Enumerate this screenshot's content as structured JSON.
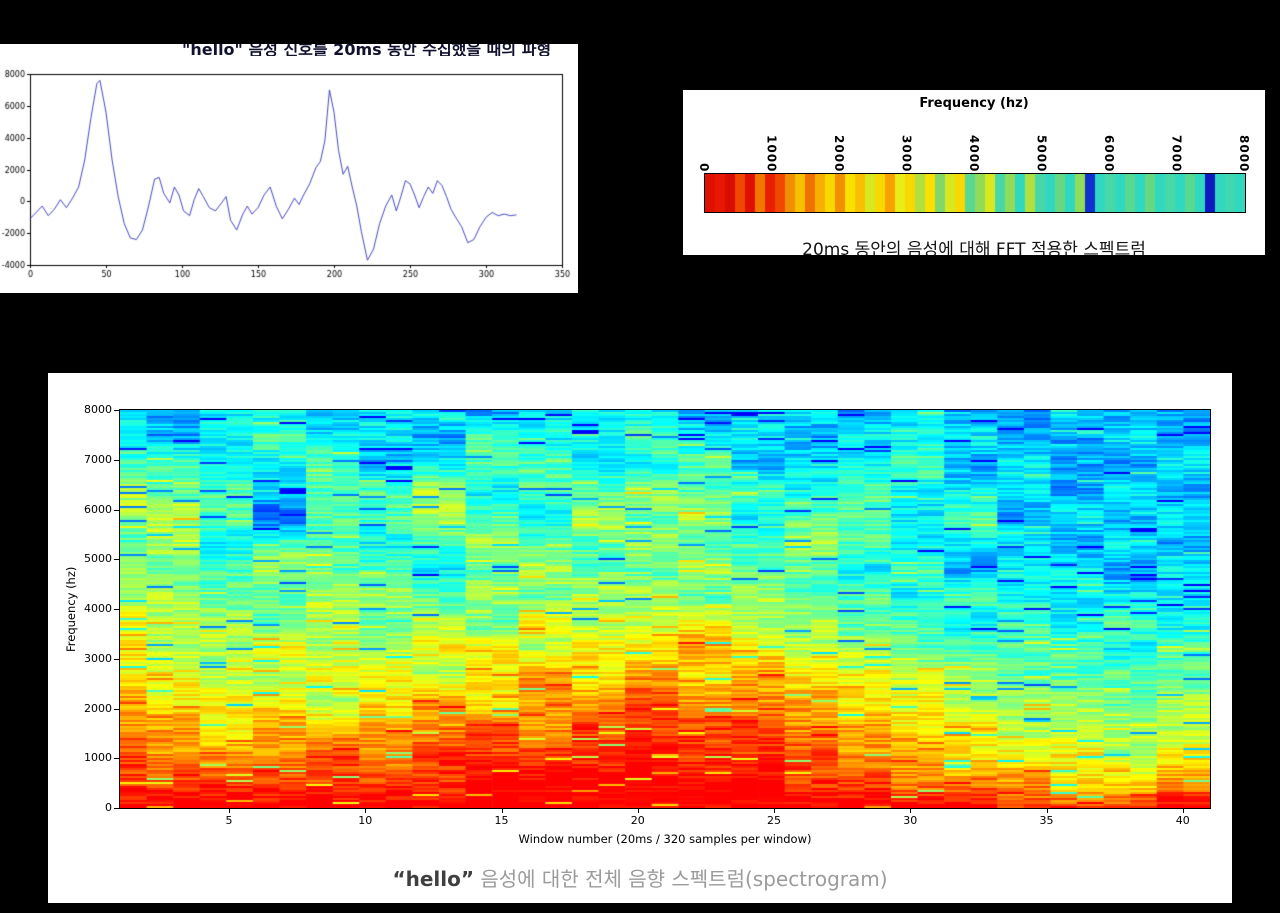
{
  "page": {
    "background": "#000000"
  },
  "chart_data": [
    {
      "type": "line",
      "clipped_title": "\"hello\" 음성 신호를 20ms 동안 수집했을 때의 파형",
      "xlabel": "",
      "ylabel": "",
      "xlim": [
        0,
        350
      ],
      "ylim": [
        -4000,
        8000
      ],
      "xticks": [
        0,
        50,
        100,
        150,
        200,
        250,
        300,
        350
      ],
      "yticks": [
        8000,
        6000,
        4000,
        2000,
        0,
        -2000,
        -4000
      ],
      "line_color": "#3434b8",
      "points": [
        [
          0,
          -1100
        ],
        [
          4,
          -700
        ],
        [
          8,
          -300
        ],
        [
          12,
          -900
        ],
        [
          16,
          -500
        ],
        [
          20,
          100
        ],
        [
          24,
          -400
        ],
        [
          28,
          200
        ],
        [
          32,
          900
        ],
        [
          36,
          2600
        ],
        [
          40,
          5200
        ],
        [
          44,
          7400
        ],
        [
          46,
          7600
        ],
        [
          50,
          5600
        ],
        [
          54,
          2600
        ],
        [
          58,
          300
        ],
        [
          62,
          -1400
        ],
        [
          66,
          -2300
        ],
        [
          70,
          -2400
        ],
        [
          74,
          -1800
        ],
        [
          78,
          -300
        ],
        [
          82,
          1400
        ],
        [
          85,
          1500
        ],
        [
          88,
          500
        ],
        [
          92,
          -100
        ],
        [
          95,
          900
        ],
        [
          98,
          400
        ],
        [
          101,
          -600
        ],
        [
          105,
          -900
        ],
        [
          108,
          100
        ],
        [
          111,
          800
        ],
        [
          114,
          300
        ],
        [
          118,
          -400
        ],
        [
          122,
          -600
        ],
        [
          126,
          -100
        ],
        [
          129,
          300
        ],
        [
          132,
          -1200
        ],
        [
          136,
          -1800
        ],
        [
          140,
          -800
        ],
        [
          143,
          -300
        ],
        [
          146,
          -800
        ],
        [
          150,
          -400
        ],
        [
          154,
          400
        ],
        [
          158,
          900
        ],
        [
          162,
          -300
        ],
        [
          166,
          -1100
        ],
        [
          170,
          -500
        ],
        [
          174,
          200
        ],
        [
          177,
          -200
        ],
        [
          180,
          400
        ],
        [
          184,
          1100
        ],
        [
          188,
          2100
        ],
        [
          191,
          2500
        ],
        [
          194,
          3800
        ],
        [
          197,
          7000
        ],
        [
          200,
          5600
        ],
        [
          203,
          3200
        ],
        [
          206,
          1700
        ],
        [
          209,
          2200
        ],
        [
          212,
          900
        ],
        [
          215,
          -300
        ],
        [
          218,
          -1900
        ],
        [
          222,
          -3700
        ],
        [
          226,
          -3000
        ],
        [
          230,
          -1400
        ],
        [
          234,
          -300
        ],
        [
          238,
          400
        ],
        [
          241,
          -600
        ],
        [
          244,
          300
        ],
        [
          247,
          1300
        ],
        [
          250,
          1100
        ],
        [
          253,
          400
        ],
        [
          256,
          -400
        ],
        [
          259,
          300
        ],
        [
          262,
          900
        ],
        [
          265,
          500
        ],
        [
          268,
          1300
        ],
        [
          271,
          1000
        ],
        [
          274,
          300
        ],
        [
          277,
          -500
        ],
        [
          280,
          -1000
        ],
        [
          284,
          -1600
        ],
        [
          288,
          -2600
        ],
        [
          292,
          -2400
        ],
        [
          296,
          -1600
        ],
        [
          300,
          -1000
        ],
        [
          304,
          -700
        ],
        [
          308,
          -900
        ],
        [
          312,
          -800
        ],
        [
          316,
          -900
        ],
        [
          320,
          -850
        ]
      ]
    },
    {
      "type": "heatmap",
      "title": "Frequency (hz)",
      "caption": "20ms 동안의 음성에 대해 FFT 적용한 스펙트럼",
      "xticks": [
        0,
        1000,
        2000,
        3000,
        4000,
        5000,
        6000,
        7000,
        8000
      ],
      "xlim": [
        0,
        8000
      ],
      "orientation": "horizontal-strip",
      "colors": [
        "#e01000",
        "#e81800",
        "#d80d00",
        "#f04800",
        "#e01000",
        "#f07800",
        "#e82000",
        "#f04800",
        "#f09000",
        "#f8c000",
        "#f07000",
        "#f8b000",
        "#f8d800",
        "#f09000",
        "#f8e000",
        "#f8c000",
        "#d8e820",
        "#f8d800",
        "#f8a000",
        "#e8ec18",
        "#f8d800",
        "#b0e040",
        "#f8e000",
        "#80d868",
        "#d8e820",
        "#f8d800",
        "#58d890",
        "#90dc58",
        "#d8e820",
        "#48d8a8",
        "#90dc58",
        "#30d8c0",
        "#b0e040",
        "#48d8a8",
        "#30d8c0",
        "#68d880",
        "#30d8c0",
        "#90dc58",
        "#1030d0",
        "#30d8c0",
        "#48d8a8",
        "#30d8c0",
        "#58d890",
        "#30d8c0",
        "#68d880",
        "#30d8c0",
        "#48d8a8",
        "#30d8c0",
        "#58d890",
        "#30d8c0",
        "#1018c0",
        "#30d8c0",
        "#40d8b0",
        "#30d8c0"
      ]
    },
    {
      "type": "heatmap",
      "colormap": "jet",
      "xlabel": "Window number (20ms / 320 samples per window)",
      "ylabel": "Frequency (hz)",
      "xlim": [
        1,
        41
      ],
      "ylim": [
        0,
        8000
      ],
      "n_windows": 41,
      "xticks": [
        5,
        10,
        15,
        20,
        25,
        30,
        35,
        40
      ],
      "yticks": [
        0,
        1000,
        2000,
        3000,
        4000,
        5000,
        6000,
        7000,
        8000
      ],
      "caption_quoted": "“hello”",
      "caption_rest": " 음성에 대한 전체 음향 스펙트럼(spectrogram)",
      "values_note": "rows top(8000hz) to bottom(0hz), 500hz bands; cols = windows 1..41 grouped in pairs; 0=low energy(blue) 9=high(red)",
      "values": [
        [
          3,
          2,
          3,
          3,
          2,
          3,
          3,
          2,
          3,
          3,
          3,
          2,
          3,
          3,
          2,
          3,
          2,
          2,
          3,
          2,
          2
        ],
        [
          3,
          2,
          3,
          4,
          3,
          3,
          2,
          4,
          3,
          3,
          4,
          3,
          3,
          2,
          3,
          3,
          3,
          2,
          2,
          3,
          2
        ],
        [
          4,
          4,
          3,
          3,
          4,
          2,
          3,
          4,
          4,
          3,
          3,
          4,
          2,
          3,
          3,
          4,
          2,
          3,
          2,
          2,
          3
        ],
        [
          5,
          4,
          4,
          3,
          4,
          4,
          5,
          3,
          4,
          4,
          5,
          4,
          4,
          3,
          4,
          3,
          3,
          3,
          2,
          3,
          2
        ],
        [
          5,
          5,
          4,
          1,
          4,
          4,
          5,
          4,
          3,
          5,
          4,
          5,
          3,
          4,
          4,
          3,
          4,
          2,
          3,
          2,
          3
        ],
        [
          4,
          5,
          3,
          4,
          4,
          3,
          4,
          5,
          4,
          4,
          5,
          4,
          4,
          5,
          4,
          3,
          3,
          3,
          2,
          3,
          2
        ],
        [
          5,
          4,
          4,
          5,
          4,
          4,
          3,
          4,
          5,
          4,
          4,
          5,
          4,
          4,
          3,
          4,
          2,
          3,
          3,
          2,
          3
        ],
        [
          5,
          5,
          4,
          4,
          5,
          5,
          4,
          5,
          4,
          5,
          5,
          4,
          5,
          4,
          4,
          3,
          4,
          3,
          3,
          3,
          3
        ],
        [
          6,
          5,
          5,
          4,
          5,
          4,
          5,
          4,
          6,
          5,
          5,
          6,
          5,
          5,
          4,
          4,
          3,
          4,
          3,
          4,
          3
        ],
        [
          6,
          5,
          5,
          6,
          5,
          5,
          6,
          6,
          5,
          6,
          6,
          7,
          6,
          5,
          5,
          4,
          4,
          4,
          4,
          3,
          4
        ],
        [
          6,
          6,
          5,
          5,
          6,
          6,
          5,
          6,
          7,
          6,
          7,
          6,
          7,
          6,
          6,
          5,
          5,
          4,
          4,
          4,
          4
        ],
        [
          7,
          6,
          6,
          6,
          5,
          6,
          7,
          6,
          7,
          7,
          8,
          7,
          7,
          7,
          6,
          6,
          5,
          5,
          5,
          4,
          5
        ],
        [
          7,
          7,
          6,
          7,
          6,
          7,
          7,
          8,
          7,
          8,
          8,
          8,
          8,
          7,
          7,
          6,
          6,
          5,
          5,
          5,
          5
        ],
        [
          8,
          7,
          7,
          7,
          8,
          7,
          8,
          8,
          8,
          8,
          9,
          8,
          8,
          8,
          7,
          7,
          6,
          6,
          6,
          5,
          6
        ],
        [
          8,
          8,
          8,
          8,
          8,
          8,
          8,
          9,
          9,
          9,
          9,
          9,
          9,
          8,
          8,
          7,
          7,
          7,
          6,
          6,
          7
        ],
        [
          9,
          9,
          9,
          9,
          9,
          9,
          9,
          9,
          9,
          9,
          9,
          9,
          9,
          9,
          9,
          9,
          9,
          8,
          8,
          8,
          9
        ]
      ]
    }
  ]
}
